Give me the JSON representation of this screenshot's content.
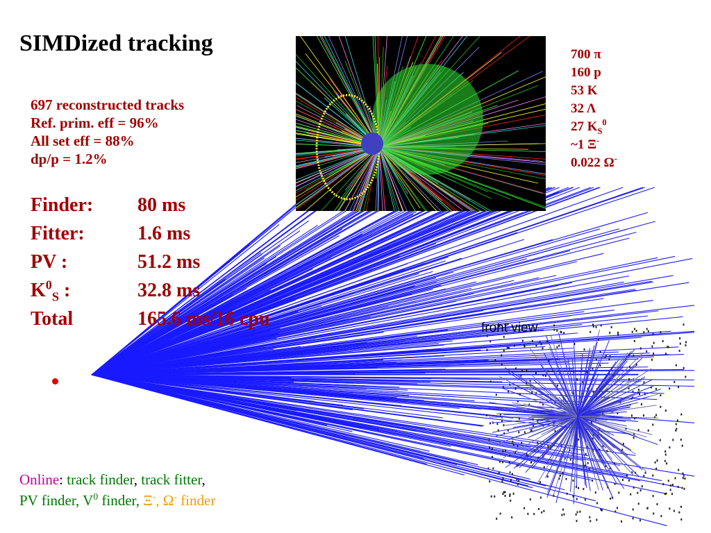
{
  "title": "SIMDized tracking",
  "reco_stats": [
    "697 reconstructed tracks",
    "Ref. prim. eff = 96%",
    "All set eff = 88%",
    "dp/p = 1.2%"
  ],
  "particles": {
    "pi": {
      "count": "700",
      "symbol": "π"
    },
    "p": {
      "count": "160",
      "symbol": "p"
    },
    "K": {
      "count": "53",
      "symbol": "K"
    },
    "Lambda": {
      "count": "32",
      "symbol": "Λ"
    },
    "K0s": {
      "count": "27",
      "symbol": "K",
      "sub": "S",
      "sup": "0"
    },
    "Xi": {
      "count": "~1",
      "symbol": "Ξ",
      "sup": "-"
    },
    "Omega": {
      "count": "0.022",
      "symbol": "Ω",
      "sup": "-"
    }
  },
  "timing": {
    "finder": {
      "label": "Finder:",
      "value": "80 ms"
    },
    "fitter": {
      "label": "Fitter:",
      "value": "1.6 ms"
    },
    "pv": {
      "label": "PV :",
      "value": "51.2 ms"
    },
    "k0s": {
      "label_main": "K",
      "label_sup": "0",
      "label_sub": "S",
      "label_tail": " :",
      "value": "32.8 ms"
    },
    "total": {
      "label": "Total",
      "value": "165.6 ms/16 cpu"
    }
  },
  "front_view_label": "front view",
  "footer": {
    "online": "Online",
    "colon": ":",
    "track_finder": " track finder",
    "comma1": ",",
    "track_fitter": " track fitter",
    "comma2": ",",
    "pv_finder": "PV finder, V",
    "v_sup": "0",
    "finder_tail": " finder,",
    "xi": " Ξ",
    "xi_sup": "-",
    "sep": ", ",
    "omega": "Ω",
    "omega_sup": "-",
    "orange_tail": " finder"
  },
  "colors": {
    "stats_text": "#a00000",
    "title": "#000000",
    "tracks": "#1a1aff",
    "online": "#c000a0",
    "green_text": "#007700",
    "orange_text": "#f59b00",
    "primary_vertex": "#e00000"
  }
}
